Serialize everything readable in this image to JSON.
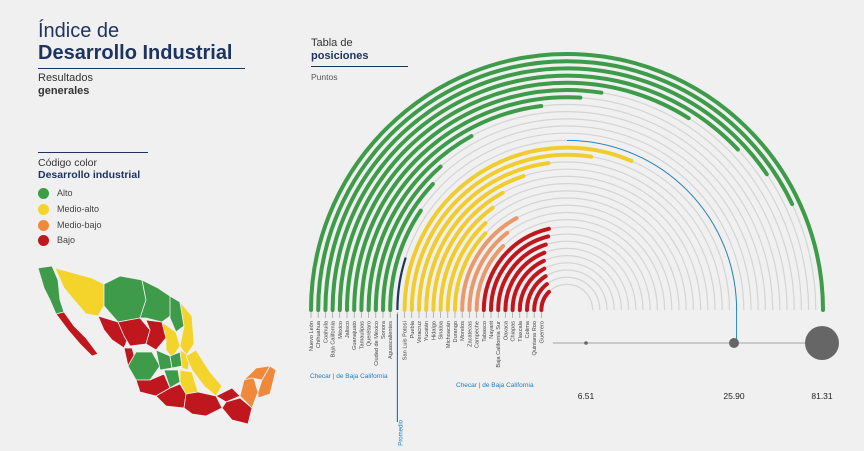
{
  "header": {
    "title_line1": "Índice de",
    "title_line2": "Desarrollo Industrial",
    "results_line1": "Resultados",
    "results_line2": "generales"
  },
  "legend": {
    "title_line1": "Código color",
    "title_line2": "Desarrollo industrial",
    "items": [
      {
        "label": "Alto",
        "color": "#3e9b49"
      },
      {
        "label": "Medio-alto",
        "color": "#f4d42b"
      },
      {
        "label": "Medio-bajo",
        "color": "#ef8a3c"
      },
      {
        "label": "Bajo",
        "color": "#c0161d"
      }
    ]
  },
  "table": {
    "title_line1": "Tabla de",
    "title_line2": "posiciones",
    "subtitle": "Puntos"
  },
  "chart_data": {
    "type": "radial-bar",
    "categories": [
      "Nuevo León",
      "Chihuahua",
      "Coahuila",
      "Baja California",
      "México",
      "Jalisco",
      "Guanajuato",
      "Tamaulipas",
      "Querétaro",
      "Ciudad de México",
      "Sonora",
      "Aguascalientes",
      "Promedio",
      "San Luis Potosí",
      "Puebla",
      "Veracruz",
      "Yucatán",
      "Hidalgo",
      "Sinaloa",
      "Michoacán",
      "Durango",
      "Morelos",
      "Zacatecas",
      "Campeche",
      "Tabasco",
      "Nayarit",
      "Baja California Sur",
      "Oaxaca",
      "Chiapas",
      "Tlaxcala",
      "Colima",
      "Quintana Roo",
      "Guerrero"
    ],
    "levels": [
      "Alto",
      "Alto",
      "Alto",
      "Alto",
      "Alto",
      "Alto",
      "Alto",
      "Alto",
      "Alto",
      "Alto",
      "Alto",
      "Alto",
      "Promedio",
      "Medio-alto",
      "Medio-alto",
      "Medio-alto",
      "Medio-alto",
      "Medio-alto",
      "Medio-alto",
      "Medio-alto",
      "Medio-alto",
      "Medio-bajo",
      "Medio-bajo",
      "Medio-bajo",
      "Bajo",
      "Bajo",
      "Bajo",
      "Bajo",
      "Bajo",
      "Bajo",
      "Bajo",
      "Bajo",
      "Bajo"
    ],
    "sweep_fraction": [
      1.0,
      0.86,
      0.81,
      0.76,
      0.68,
      0.55,
      0.52,
      0.46,
      0.34,
      0.27,
      0.24,
      0.19,
      0.1,
      0.63,
      0.55,
      0.46,
      0.4,
      0.34,
      0.3,
      0.26,
      0.24,
      0.34,
      0.29,
      0.25,
      0.43,
      0.42,
      0.4,
      0.38,
      0.36,
      0.34,
      0.32,
      0.29,
      0.25
    ],
    "level_colors": {
      "Alto": "#3e9b49",
      "Medio-alto": "#f0cc2c",
      "Medio-bajo": "#e8996e",
      "Bajo": "#c0161d",
      "Promedio": "#1d3461",
      "track": "#d4d4d4"
    },
    "highlight_color": "#1a7ec4",
    "annotations": [
      {
        "text": "Checar | de Baja California",
        "anchor": "Aguascalientes"
      },
      {
        "text": "Checar | de Baja California",
        "anchor": "Michoacán"
      },
      {
        "text": "Promedio",
        "anchor": "Promedio"
      }
    ],
    "scale": {
      "ticks": [
        6.51,
        25.9,
        81.31
      ],
      "labels": [
        "6.51",
        "25.90",
        "81.31"
      ]
    }
  }
}
